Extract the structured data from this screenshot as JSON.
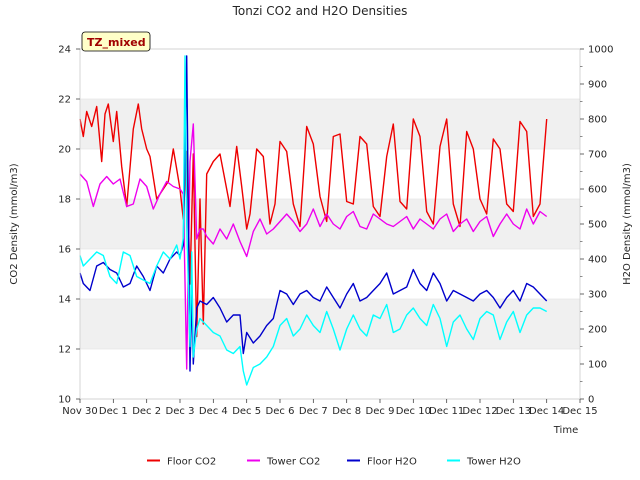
{
  "chart_data": {
    "type": "line",
    "title": "Tonzi CO2 and H2O Densities",
    "site_badge": "TZ_mixed",
    "xlabel": "Time",
    "ylabel_left": "CO2 Density (mmol/m3)",
    "ylabel_right": "H2O Density (mmol/m3)",
    "x_range": [
      0,
      15
    ],
    "ylim_left": [
      10,
      24
    ],
    "ylim_right": [
      0,
      1000
    ],
    "x_ticks": [
      {
        "v": 0,
        "label": "Nov 30"
      },
      {
        "v": 1,
        "label": "Dec 1"
      },
      {
        "v": 2,
        "label": "Dec 2"
      },
      {
        "v": 3,
        "label": "Dec 3"
      },
      {
        "v": 4,
        "label": "Dec 4"
      },
      {
        "v": 5,
        "label": "Dec 5"
      },
      {
        "v": 6,
        "label": "Dec 6"
      },
      {
        "v": 7,
        "label": "Dec 7"
      },
      {
        "v": 8,
        "label": "Dec 8"
      },
      {
        "v": 9,
        "label": "Dec 9"
      },
      {
        "v": 10,
        "label": "Dec 10"
      },
      {
        "v": 11,
        "label": "Dec 11"
      },
      {
        "v": 12,
        "label": "Dec 12"
      },
      {
        "v": 13,
        "label": "Dec 13"
      },
      {
        "v": 14,
        "label": "Dec 14"
      },
      {
        "v": 15,
        "label": "Dec 15"
      }
    ],
    "y_ticks_left": [
      10,
      12,
      14,
      16,
      18,
      20,
      22,
      24
    ],
    "y_ticks_right": [
      0,
      100,
      200,
      300,
      400,
      500,
      600,
      700,
      800,
      900,
      1000
    ],
    "grid": "horizontal bands",
    "legend_position": "bottom",
    "series": [
      {
        "name": "Floor CO2",
        "axis": "left",
        "color": "#ee0000",
        "x": [
          0.0,
          0.1,
          0.2,
          0.35,
          0.5,
          0.65,
          0.75,
          0.85,
          1.0,
          1.1,
          1.25,
          1.4,
          1.6,
          1.75,
          1.85,
          2.0,
          2.1,
          2.3,
          2.5,
          2.65,
          2.8,
          2.9,
          3.0,
          3.1,
          3.2,
          3.3,
          3.4,
          3.5,
          3.6,
          3.7,
          3.8,
          4.0,
          4.2,
          4.5,
          4.7,
          4.85,
          5.0,
          5.1,
          5.3,
          5.5,
          5.7,
          5.85,
          6.0,
          6.2,
          6.4,
          6.6,
          6.8,
          7.0,
          7.2,
          7.4,
          7.6,
          7.8,
          8.0,
          8.2,
          8.4,
          8.6,
          8.8,
          9.0,
          9.2,
          9.4,
          9.6,
          9.8,
          10.0,
          10.2,
          10.4,
          10.6,
          10.8,
          11.0,
          11.2,
          11.4,
          11.6,
          11.8,
          12.0,
          12.2,
          12.4,
          12.6,
          12.8,
          13.0,
          13.2,
          13.4,
          13.6,
          13.8,
          14.0
        ],
        "y": [
          21.2,
          20.5,
          21.5,
          20.9,
          21.7,
          19.5,
          21.4,
          21.8,
          20.3,
          21.5,
          19.3,
          17.7,
          20.8,
          21.8,
          20.8,
          20.0,
          19.7,
          18.0,
          18.4,
          18.7,
          20.0,
          19.2,
          18.4,
          17.2,
          19.9,
          14.6,
          19.8,
          12.5,
          18.0,
          13.0,
          19.0,
          19.5,
          19.8,
          17.7,
          20.1,
          18.5,
          16.8,
          17.4,
          20.0,
          19.7,
          17.0,
          17.8,
          20.3,
          19.9,
          17.8,
          16.9,
          20.9,
          20.2,
          18.1,
          17.1,
          20.5,
          20.6,
          17.9,
          17.8,
          20.5,
          20.2,
          17.7,
          17.3,
          19.7,
          21.0,
          17.9,
          17.6,
          21.2,
          20.5,
          17.5,
          17.0,
          20.1,
          21.2,
          17.8,
          16.9,
          20.7,
          20.0,
          18.0,
          17.4,
          20.4,
          20.0,
          17.8,
          17.5,
          21.1,
          20.7,
          17.3,
          17.8,
          21.2
        ]
      },
      {
        "name": "Tower CO2",
        "axis": "left",
        "color": "#ee00ee",
        "x": [
          0.0,
          0.2,
          0.4,
          0.6,
          0.8,
          1.0,
          1.2,
          1.4,
          1.6,
          1.8,
          2.0,
          2.2,
          2.4,
          2.6,
          2.8,
          3.0,
          3.1,
          3.2,
          3.3,
          3.4,
          3.5,
          3.6,
          3.7,
          3.8,
          4.0,
          4.2,
          4.4,
          4.6,
          4.8,
          5.0,
          5.2,
          5.4,
          5.6,
          5.8,
          6.0,
          6.2,
          6.4,
          6.6,
          6.8,
          7.0,
          7.2,
          7.4,
          7.6,
          7.8,
          8.0,
          8.2,
          8.4,
          8.6,
          8.8,
          9.0,
          9.2,
          9.4,
          9.6,
          9.8,
          10.0,
          10.2,
          10.4,
          10.6,
          10.8,
          11.0,
          11.2,
          11.4,
          11.6,
          11.8,
          12.0,
          12.2,
          12.4,
          12.6,
          12.8,
          13.0,
          13.2,
          13.4,
          13.6,
          13.8,
          14.0
        ],
        "y": [
          19.0,
          18.7,
          17.7,
          18.6,
          18.9,
          18.6,
          18.8,
          17.7,
          17.8,
          18.8,
          18.5,
          17.6,
          18.2,
          18.7,
          18.5,
          18.4,
          18.2,
          11.2,
          19.5,
          21.0,
          16.4,
          16.8,
          16.8,
          16.5,
          16.2,
          16.8,
          16.4,
          17.0,
          16.3,
          15.7,
          16.7,
          17.2,
          16.6,
          16.8,
          17.1,
          17.4,
          17.1,
          16.7,
          17.0,
          17.6,
          16.9,
          17.4,
          17.0,
          16.8,
          17.3,
          17.5,
          16.9,
          16.8,
          17.4,
          17.2,
          17.0,
          16.9,
          17.1,
          17.3,
          16.8,
          17.2,
          17.0,
          16.8,
          17.2,
          17.4,
          16.7,
          17.0,
          17.2,
          16.7,
          17.1,
          17.3,
          16.5,
          17.0,
          17.4,
          17.0,
          16.8,
          17.6,
          17.0,
          17.5,
          17.3
        ]
      },
      {
        "name": "Floor H2O",
        "axis": "right",
        "color": "#0000cc",
        "x": [
          0.0,
          0.1,
          0.3,
          0.5,
          0.7,
          0.9,
          1.1,
          1.3,
          1.5,
          1.7,
          1.9,
          2.1,
          2.3,
          2.5,
          2.7,
          2.9,
          3.0,
          3.1,
          3.15,
          3.2,
          3.3,
          3.35,
          3.4,
          3.5,
          3.6,
          3.8,
          4.0,
          4.2,
          4.4,
          4.6,
          4.8,
          4.9,
          5.0,
          5.2,
          5.4,
          5.6,
          5.8,
          6.0,
          6.2,
          6.4,
          6.6,
          6.8,
          7.0,
          7.2,
          7.4,
          7.6,
          7.8,
          8.0,
          8.2,
          8.4,
          8.6,
          8.8,
          9.0,
          9.2,
          9.4,
          9.6,
          9.8,
          10.0,
          10.2,
          10.4,
          10.6,
          10.8,
          11.0,
          11.2,
          11.4,
          11.6,
          11.8,
          12.0,
          12.2,
          12.4,
          12.6,
          12.8,
          13.0,
          13.2,
          13.4,
          13.6,
          13.8,
          14.0
        ],
        "y": [
          360,
          330,
          310,
          380,
          390,
          370,
          360,
          320,
          330,
          380,
          350,
          310,
          380,
          360,
          400,
          420,
          410,
          440,
          700,
          980,
          80,
          300,
          100,
          260,
          280,
          270,
          290,
          260,
          220,
          240,
          240,
          130,
          190,
          160,
          180,
          210,
          230,
          310,
          300,
          270,
          300,
          310,
          290,
          280,
          320,
          290,
          260,
          300,
          330,
          280,
          290,
          310,
          330,
          360,
          300,
          310,
          320,
          370,
          330,
          310,
          360,
          330,
          280,
          310,
          300,
          290,
          280,
          300,
          310,
          290,
          260,
          290,
          310,
          280,
          330,
          320,
          300,
          280
        ]
      },
      {
        "name": "Tower H2O",
        "axis": "right",
        "color": "#00ffff",
        "x": [
          0.0,
          0.1,
          0.3,
          0.5,
          0.7,
          0.9,
          1.1,
          1.3,
          1.5,
          1.7,
          1.9,
          2.1,
          2.3,
          2.5,
          2.7,
          2.9,
          3.0,
          3.1,
          3.15,
          3.2,
          3.3,
          3.35,
          3.4,
          3.5,
          3.6,
          3.8,
          4.0,
          4.2,
          4.4,
          4.6,
          4.8,
          4.9,
          5.0,
          5.2,
          5.4,
          5.6,
          5.8,
          6.0,
          6.2,
          6.4,
          6.6,
          6.8,
          7.0,
          7.2,
          7.4,
          7.6,
          7.8,
          8.0,
          8.2,
          8.4,
          8.6,
          8.8,
          9.0,
          9.2,
          9.4,
          9.6,
          9.8,
          10.0,
          10.2,
          10.4,
          10.6,
          10.8,
          11.0,
          11.2,
          11.4,
          11.6,
          11.8,
          12.0,
          12.2,
          12.4,
          12.6,
          12.8,
          13.0,
          13.2,
          13.4,
          13.6,
          13.8,
          14.0
        ],
        "y": [
          410,
          380,
          400,
          420,
          410,
          350,
          330,
          420,
          410,
          350,
          340,
          330,
          380,
          420,
          400,
          440,
          400,
          460,
          980,
          500,
          150,
          420,
          120,
          200,
          230,
          210,
          190,
          180,
          140,
          130,
          150,
          80,
          40,
          90,
          100,
          120,
          150,
          210,
          230,
          180,
          200,
          240,
          210,
          190,
          250,
          200,
          140,
          200,
          240,
          200,
          180,
          240,
          230,
          270,
          190,
          200,
          240,
          260,
          230,
          210,
          270,
          230,
          150,
          220,
          240,
          200,
          170,
          230,
          250,
          240,
          170,
          220,
          250,
          190,
          240,
          260,
          260,
          250
        ]
      }
    ]
  },
  "legend": [
    {
      "label": "Floor CO2",
      "color": "#ee0000"
    },
    {
      "label": "Tower CO2",
      "color": "#ee00ee"
    },
    {
      "label": "Floor H2O",
      "color": "#0000cc"
    },
    {
      "label": "Tower H2O",
      "color": "#00ffff"
    }
  ]
}
